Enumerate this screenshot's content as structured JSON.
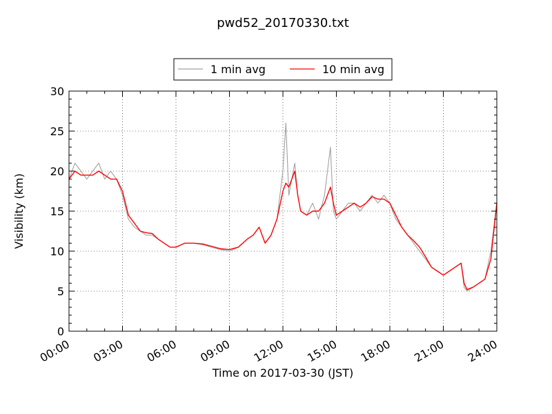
{
  "chart_data": {
    "type": "line",
    "title": "pwd52_20170330.txt",
    "xlabel": "Time on 2017-03-30 (JST)",
    "ylabel": "Visibility (km)",
    "xlim": [
      "00:00",
      "24:00"
    ],
    "ylim": [
      0,
      30
    ],
    "x_ticks": [
      "00:00",
      "03:00",
      "06:00",
      "09:00",
      "12:00",
      "15:00",
      "18:00",
      "21:00",
      "24:00"
    ],
    "y_ticks": [
      "0",
      "5",
      "10",
      "15",
      "20",
      "25",
      "30"
    ],
    "grid": true,
    "legend": {
      "placement": "top-center",
      "entries": [
        "1 min avg",
        "10 min avg"
      ]
    },
    "series": [
      {
        "name": "1 min avg",
        "color": "#a0a0a0",
        "x": [
          "00:00",
          "00:20",
          "00:40",
          "01:00",
          "01:20",
          "01:40",
          "02:00",
          "02:20",
          "02:40",
          "03:00",
          "03:20",
          "03:40",
          "04:00",
          "04:20",
          "04:40",
          "05:00",
          "05:20",
          "05:40",
          "06:00",
          "06:30",
          "07:00",
          "07:30",
          "08:00",
          "08:30",
          "09:00",
          "09:30",
          "10:00",
          "10:20",
          "10:40",
          "11:00",
          "11:20",
          "11:40",
          "12:00",
          "12:10",
          "12:20",
          "12:30",
          "12:40",
          "12:50",
          "13:00",
          "13:20",
          "13:40",
          "14:00",
          "14:20",
          "14:40",
          "14:50",
          "15:00",
          "15:20",
          "15:40",
          "16:00",
          "16:20",
          "16:40",
          "17:00",
          "17:20",
          "17:40",
          "18:00",
          "18:20",
          "18:40",
          "19:00",
          "19:20",
          "19:40",
          "20:00",
          "20:20",
          "20:40",
          "21:00",
          "21:20",
          "21:40",
          "22:00",
          "22:10",
          "22:20",
          "22:40",
          "23:00",
          "23:20",
          "23:40",
          "24:00"
        ],
        "values": [
          19,
          21,
          20,
          19,
          20,
          21,
          19,
          20,
          19,
          17,
          14,
          13,
          12.5,
          12,
          12,
          11.5,
          11,
          10.5,
          10.5,
          11,
          11,
          10.8,
          10.5,
          10.2,
          10,
          10.5,
          11.5,
          12,
          13,
          11,
          12,
          14,
          20,
          26,
          17,
          19,
          21,
          17,
          15,
          14.5,
          16,
          14,
          17,
          23,
          15,
          14,
          15,
          16,
          16,
          15,
          16,
          17,
          16,
          17,
          16,
          14,
          13,
          12,
          11,
          10,
          9,
          8,
          7.5,
          7,
          7.5,
          8,
          8.5,
          5.5,
          5,
          5.5,
          6,
          6.5,
          10,
          16
        ]
      },
      {
        "name": "10 min avg",
        "color": "#ff0000",
        "x": [
          "00:00",
          "00:20",
          "00:40",
          "01:00",
          "01:20",
          "01:40",
          "02:00",
          "02:20",
          "02:40",
          "03:00",
          "03:20",
          "03:40",
          "04:00",
          "04:20",
          "04:40",
          "05:00",
          "05:20",
          "05:40",
          "06:00",
          "06:30",
          "07:00",
          "07:30",
          "08:00",
          "08:30",
          "09:00",
          "09:30",
          "10:00",
          "10:20",
          "10:40",
          "11:00",
          "11:20",
          "11:40",
          "12:00",
          "12:10",
          "12:20",
          "12:30",
          "12:40",
          "12:50",
          "13:00",
          "13:20",
          "13:40",
          "14:00",
          "14:20",
          "14:40",
          "14:50",
          "15:00",
          "15:20",
          "15:40",
          "16:00",
          "16:20",
          "16:40",
          "17:00",
          "17:20",
          "17:40",
          "18:00",
          "18:20",
          "18:40",
          "19:00",
          "19:20",
          "19:40",
          "20:00",
          "20:20",
          "20:40",
          "21:00",
          "21:20",
          "21:40",
          "22:00",
          "22:10",
          "22:20",
          "22:40",
          "23:00",
          "23:20",
          "23:40",
          "24:00"
        ],
        "values": [
          19,
          20,
          19.5,
          19.5,
          19.5,
          20,
          19.5,
          19,
          19,
          17.5,
          14.5,
          13.5,
          12.5,
          12.3,
          12.2,
          11.5,
          11,
          10.5,
          10.5,
          11,
          11,
          10.9,
          10.6,
          10.3,
          10.2,
          10.5,
          11.5,
          12,
          13,
          11,
          12,
          14,
          17.5,
          18.5,
          18,
          19,
          20,
          17,
          15,
          14.5,
          15,
          15,
          16,
          18,
          16,
          14.5,
          15,
          15.5,
          16,
          15.5,
          16,
          16.8,
          16.5,
          16.5,
          16,
          14.5,
          13,
          12,
          11.3,
          10.5,
          9.3,
          8,
          7.5,
          7,
          7.5,
          8,
          8.5,
          6,
          5.2,
          5.5,
          6,
          6.5,
          9,
          16
        ]
      }
    ]
  }
}
